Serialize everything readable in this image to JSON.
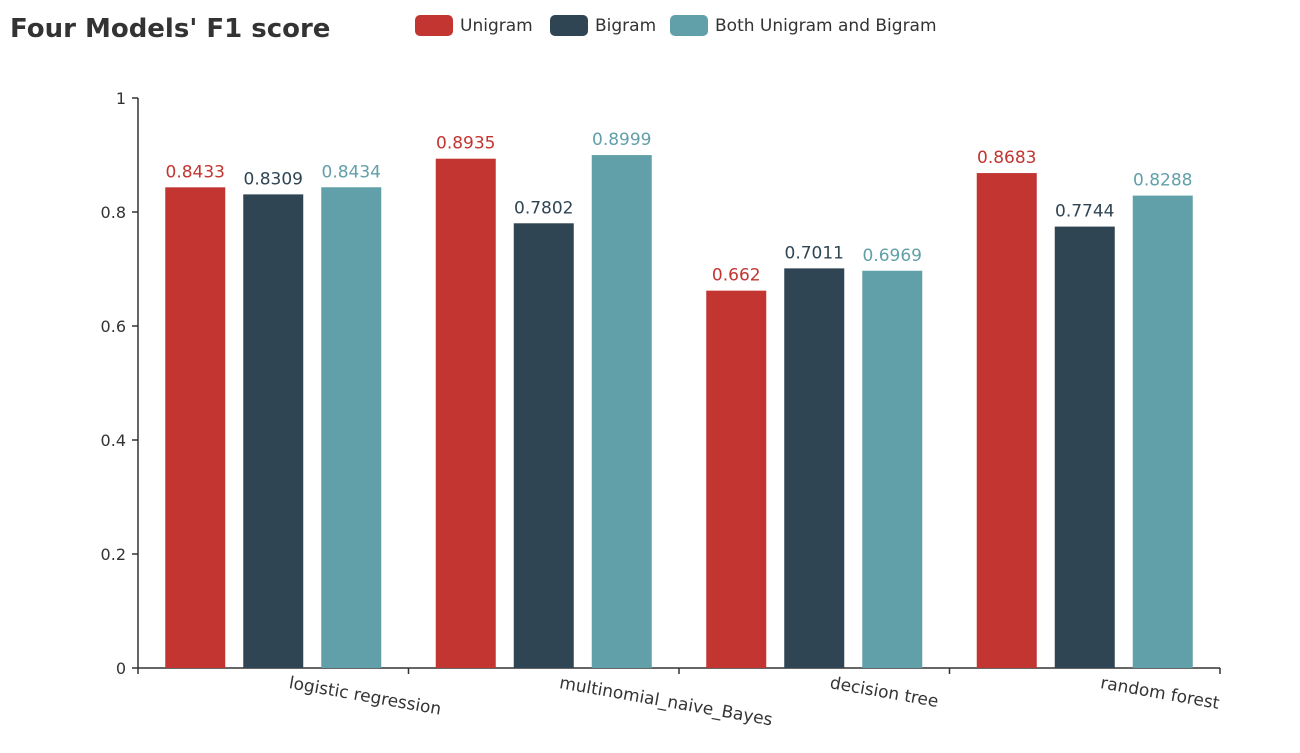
{
  "chart_data": {
    "type": "bar",
    "title": "Four Models' F1 score",
    "categories": [
      "logistic regression",
      "multinomial_naive_Bayes",
      "decision tree",
      "random forest"
    ],
    "series": [
      {
        "name": "Unigram",
        "color": "#c23531",
        "values": [
          0.8433,
          0.8935,
          0.662,
          0.8683
        ]
      },
      {
        "name": "Bigram",
        "color": "#2f4554",
        "values": [
          0.8309,
          0.7802,
          0.7011,
          0.7744
        ]
      },
      {
        "name": "Both Unigram and Bigram",
        "color": "#61a0a8",
        "values": [
          0.8434,
          0.8999,
          0.6969,
          0.8288
        ]
      }
    ],
    "yticks": [
      "0",
      "0.2",
      "0.4",
      "0.6",
      "0.8",
      "1"
    ],
    "ylim": [
      0,
      1
    ],
    "legend_position": "top",
    "grid": false
  }
}
